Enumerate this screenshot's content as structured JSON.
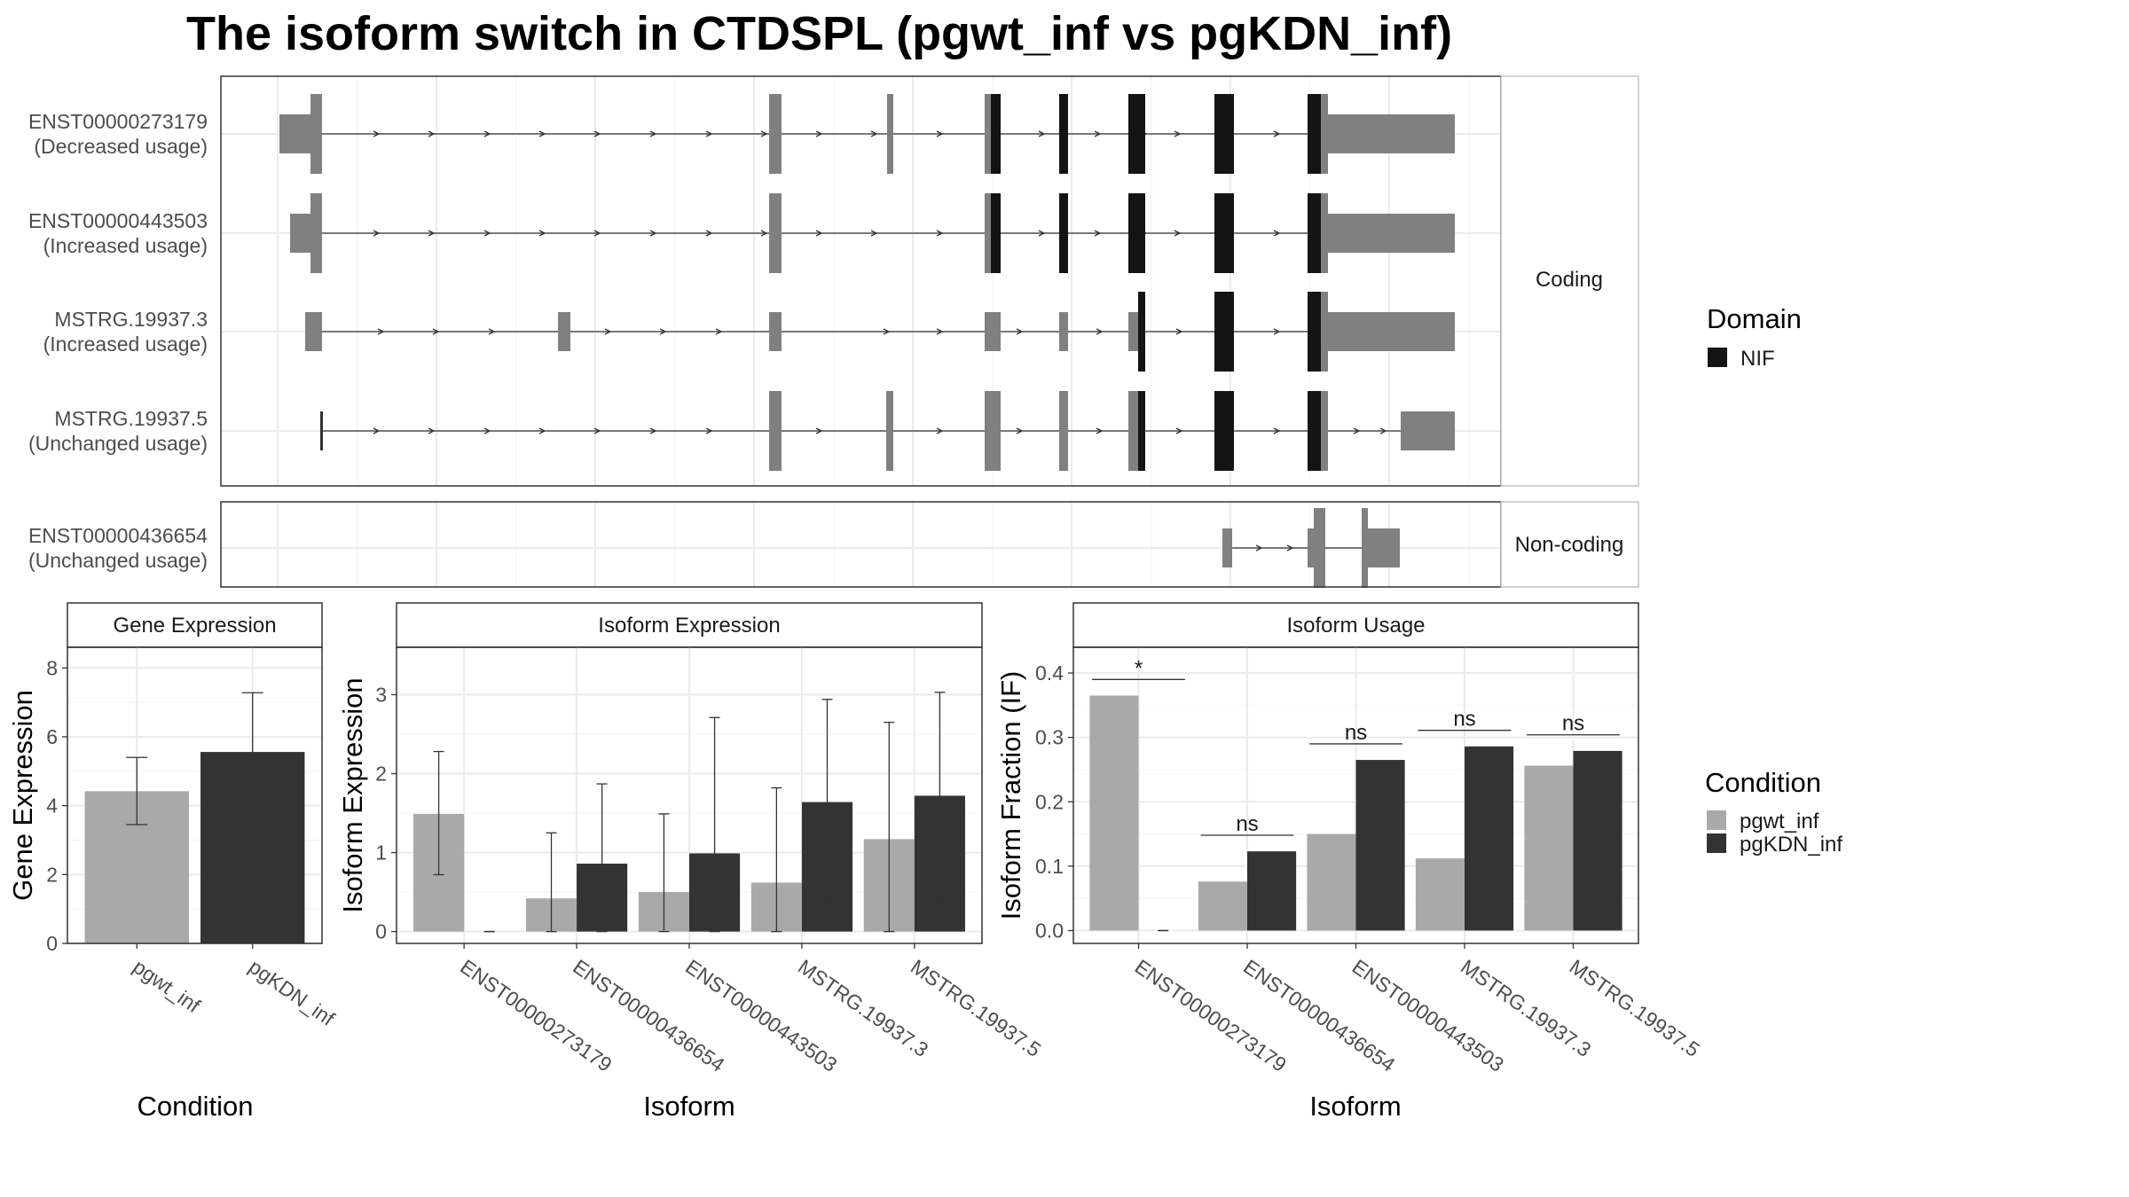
{
  "title": "The isoform switch in CTDSPL (pgwt_inf vs pgKDN_inf)",
  "colors": {
    "pgwt_inf": "#a9a9a9",
    "pgKDN_inf": "#333333",
    "exon": "#808080",
    "domain": "#141414",
    "grid": "#ebebeb",
    "strip": "#ffffff"
  },
  "structure": {
    "coding_label": "Coding",
    "noncoding_label": "Non-coding",
    "domain_legend_title": "Domain",
    "domain_legend_item": "NIF",
    "transcripts": [
      {
        "id": "ENST00000273179",
        "status": "(Decreased usage)",
        "group": "coding"
      },
      {
        "id": "ENST00000443503",
        "status": "(Increased usage)",
        "group": "coding"
      },
      {
        "id": "MSTRG.19937.3",
        "status": "(Increased usage)",
        "group": "coding"
      },
      {
        "id": "MSTRG.19937.5",
        "status": "(Unchanged usage)",
        "group": "coding"
      },
      {
        "id": "ENST00000436654",
        "status": "(Unchanged usage)",
        "group": "noncoding"
      }
    ]
  },
  "condition_legend": {
    "title": "Condition",
    "items": [
      "pgwt_inf",
      "pgKDN_inf"
    ]
  },
  "chart_data": [
    {
      "type": "bar",
      "title": "Gene Expression",
      "xlabel": "Condition",
      "ylabel": "Gene Expression",
      "categories": [
        "pgwt_inf",
        "pgKDN_inf"
      ],
      "values": [
        4.42,
        5.56
      ],
      "error_low": [
        3.45,
        3.88
      ],
      "error_high": [
        5.4,
        7.28
      ],
      "ylim": [
        0,
        8.6
      ],
      "yticks": [
        0,
        2,
        4,
        6,
        8
      ]
    },
    {
      "type": "bar",
      "title": "Isoform Expression",
      "xlabel": "Isoform",
      "ylabel": "Isoform Expression",
      "categories": [
        "ENST00000273179",
        "ENST00000436654",
        "ENST00000443503",
        "MSTRG.19937.3",
        "MSTRG.19937.5"
      ],
      "series": [
        {
          "name": "pgwt_inf",
          "values": [
            1.49,
            0.42,
            0.5,
            0.62,
            1.17
          ],
          "error_low": [
            0.72,
            0.0,
            0.0,
            0.0,
            0.0
          ],
          "error_high": [
            2.28,
            1.25,
            1.49,
            1.82,
            2.65
          ]
        },
        {
          "name": "pgKDN_inf",
          "values": [
            0.0,
            0.86,
            0.99,
            1.64,
            1.72
          ],
          "error_low": [
            0.0,
            0.0,
            0.0,
            0.37,
            0.41
          ],
          "error_high": [
            0.0,
            1.87,
            2.71,
            2.94,
            3.03
          ]
        }
      ],
      "ylim": [
        -0.15,
        3.6
      ],
      "yticks": [
        0,
        1,
        2,
        3
      ]
    },
    {
      "type": "bar",
      "title": "Isoform Usage",
      "xlabel": "Isoform",
      "ylabel": "Isoform Fraction (IF)",
      "categories": [
        "ENST00000273179",
        "ENST00000436654",
        "ENST00000443503",
        "MSTRG.19937.3",
        "MSTRG.19937.5"
      ],
      "series": [
        {
          "name": "pgwt_inf",
          "values": [
            0.365,
            0.076,
            0.15,
            0.112,
            0.256
          ]
        },
        {
          "name": "pgKDN_inf",
          "values": [
            0.0,
            0.123,
            0.265,
            0.286,
            0.279
          ]
        }
      ],
      "significance": [
        "*",
        "ns",
        "ns",
        "ns",
        "ns"
      ],
      "ylim": [
        -0.02,
        0.44
      ],
      "yticks": [
        0.0,
        0.1,
        0.2,
        0.3,
        0.4
      ],
      "ytick_labels": [
        "0.0",
        "0.1",
        "0.2",
        "0.3",
        "0.4"
      ]
    }
  ]
}
